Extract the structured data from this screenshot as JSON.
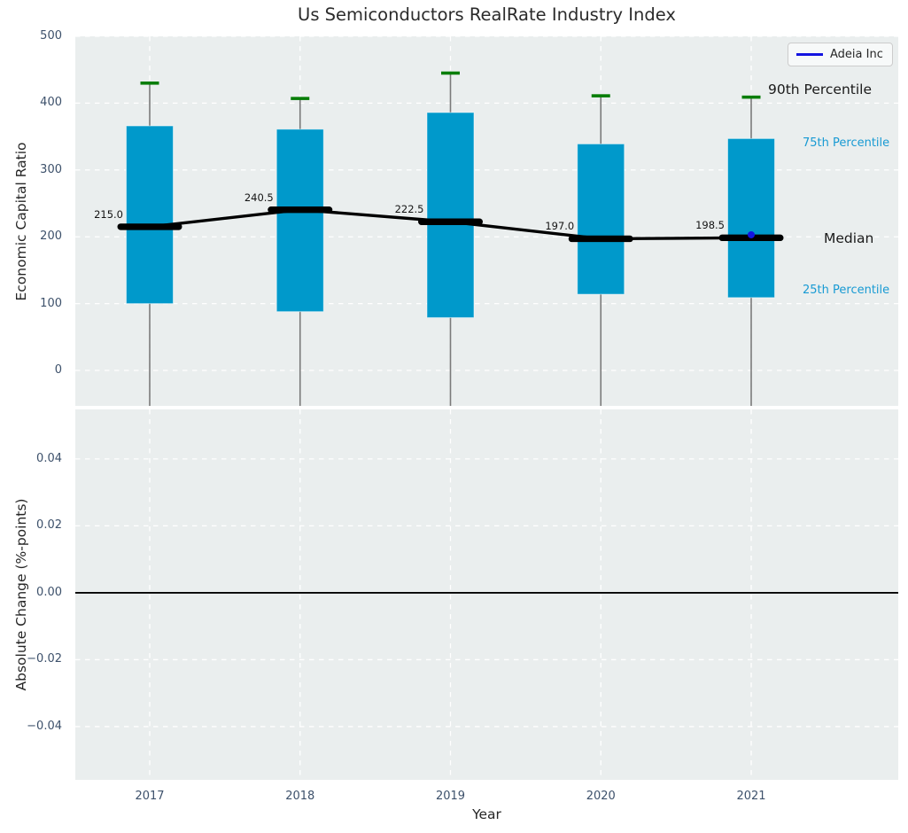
{
  "title": "Us Semiconductors RealRate Industry Index",
  "legend": {
    "label": "Adeia Inc",
    "line_color": "#1414e0"
  },
  "right_labels": {
    "p90": "90th Percentile",
    "p75": "75th Percentile",
    "median": "Median",
    "p25": "25th Percentile"
  },
  "colors": {
    "plot_bg": "#eaeeee",
    "grid": "#ffffff",
    "bar": "#0099cb",
    "cap_green": "#077d07",
    "whisker": "#7a7a7a",
    "median_black": "#000000",
    "adeia_blue": "#1414e0",
    "tick_text": "#3d516b",
    "dark_text": "#262626",
    "blue_label_text": "#189ad3"
  },
  "chart_data": [
    {
      "type": "box-timeseries",
      "title": "Us Semiconductors RealRate Industry Index",
      "ylabel": "Economic Capital Ratio",
      "xlabel": "",
      "ylim": [
        -53,
        500
      ],
      "ytick_values": [
        0,
        100,
        200,
        300,
        400,
        500
      ],
      "ytick_labels": [
        "0",
        "100",
        "200",
        "300",
        "400",
        "500"
      ],
      "categories": [
        "2017",
        "2018",
        "2019",
        "2020",
        "2021"
      ],
      "grid": true,
      "legend_position": "upper right",
      "series": [
        {
          "name": "90th Percentile",
          "values": [
            430,
            407,
            445,
            411,
            409
          ]
        },
        {
          "name": "75th Percentile",
          "values": [
            366,
            361,
            386,
            339,
            347
          ]
        },
        {
          "name": "Median",
          "values": [
            215.0,
            240.5,
            222.5,
            197.0,
            198.5
          ]
        },
        {
          "name": "25th Percentile",
          "values": [
            100,
            88,
            79,
            114,
            109
          ]
        }
      ],
      "median_labels": [
        "215.0",
        "240.5",
        "222.5",
        "197.0",
        "198.5"
      ],
      "company_point": {
        "name": "Adeia Inc",
        "year": "2021",
        "value": 203
      }
    },
    {
      "type": "line",
      "title": "",
      "ylabel": "Absolute Change (%-points)",
      "xlabel": "Year",
      "ylim": [
        -0.0559,
        0.0548
      ],
      "ytick_values": [
        0.04,
        0.02,
        0.0,
        -0.02,
        -0.04
      ],
      "ytick_labels": [
        "0.04",
        "0.02",
        "0.00",
        "−0.02",
        "−0.04"
      ],
      "categories": [
        "2017",
        "2018",
        "2019",
        "2020",
        "2021"
      ],
      "grid": true,
      "zero_line": 0.0,
      "series": []
    }
  ]
}
